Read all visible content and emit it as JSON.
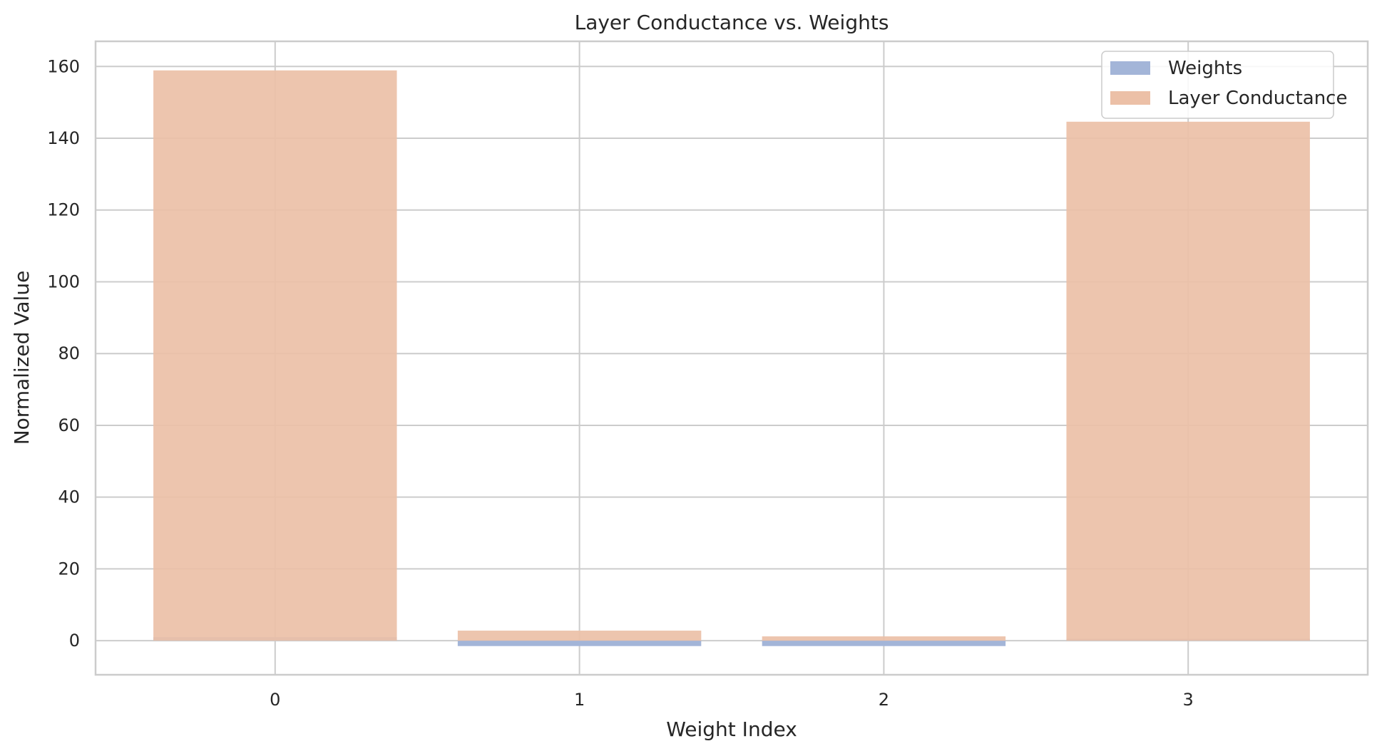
{
  "chart_data": {
    "type": "bar",
    "title": "Layer Conductance vs. Weights",
    "xlabel": "Weight Index",
    "ylabel": "Normalized Value",
    "categories": [
      "0",
      "1",
      "2",
      "3"
    ],
    "series": [
      {
        "name": "Weights",
        "values": [
          1.0,
          -1.5,
          -1.5,
          0.5
        ],
        "color": "#a3b5d8"
      },
      {
        "name": "Layer Conductance",
        "values": [
          158.9,
          2.8,
          1.2,
          144.6
        ],
        "color": "#ecc0a7"
      }
    ],
    "ylim": [
      -9.5,
      167
    ],
    "yticks": [
      0,
      20,
      40,
      60,
      80,
      100,
      120,
      140,
      160
    ],
    "yticks_labels": [
      "0",
      "20",
      "40",
      "60",
      "80",
      "100",
      "120",
      "140",
      "160"
    ],
    "grid": true,
    "legend_position": "top-right"
  }
}
